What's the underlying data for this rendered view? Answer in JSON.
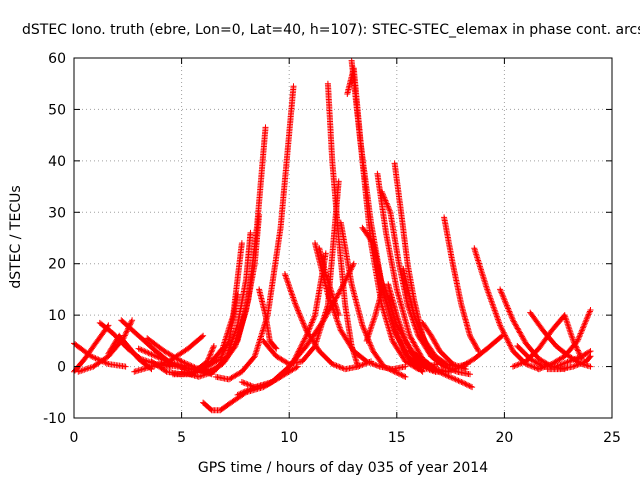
{
  "chart_data": {
    "type": "scatter",
    "title": "dSTEC Iono. truth (ebre, Lon=0, Lat=40, h=107): STEC-STEC_elemax in phase cont. arcs",
    "xlabel": "GPS time / hours of day 035 of year 2014",
    "ylabel": "dSTEC  / TECUs",
    "xlim": [
      0,
      25
    ],
    "ylim": [
      -10,
      60
    ],
    "xticks": [
      0,
      5,
      10,
      15,
      20,
      25
    ],
    "yticks": [
      -10,
      0,
      10,
      20,
      30,
      40,
      50,
      60
    ],
    "grid": true,
    "legend": "none",
    "marker": "plus",
    "marker_color": "#ff0000",
    "arcs": [
      {
        "x": [
          0.0,
          0.5,
          1.0,
          1.6
        ],
        "y": [
          -1.0,
          1.5,
          4.5,
          8.0
        ]
      },
      {
        "x": [
          0.0,
          0.8,
          1.6,
          2.4
        ],
        "y": [
          4.5,
          2.0,
          0.5,
          0.0
        ]
      },
      {
        "x": [
          0.2,
          0.9,
          1.6,
          2.3,
          2.7
        ],
        "y": [
          -1.0,
          0.0,
          2.0,
          5.5,
          9.0
        ]
      },
      {
        "x": [
          1.2,
          1.8,
          2.5,
          3.1,
          3.8,
          4.5
        ],
        "y": [
          8.5,
          6.5,
          3.5,
          1.5,
          0.5,
          0.0
        ]
      },
      {
        "x": [
          1.6,
          2.1,
          2.5,
          3.0,
          3.6
        ],
        "y": [
          2.5,
          6.0,
          4.0,
          1.5,
          -0.5
        ]
      },
      {
        "x": [
          2.2,
          3.0,
          3.8,
          4.4,
          5.0
        ],
        "y": [
          9.0,
          6.0,
          3.0,
          1.0,
          0.0
        ]
      },
      {
        "x": [
          2.8,
          3.6,
          4.4,
          5.3,
          6.0
        ],
        "y": [
          -1.0,
          0.0,
          1.0,
          3.5,
          6.0
        ]
      },
      {
        "x": [
          3.0,
          3.8,
          4.6,
          5.4,
          6.2,
          6.6
        ],
        "y": [
          3.5,
          2.0,
          0.5,
          -0.5,
          -1.0,
          -0.5
        ]
      },
      {
        "x": [
          3.4,
          4.2,
          5.0,
          5.8,
          6.4
        ],
        "y": [
          5.5,
          3.0,
          1.0,
          -0.5,
          -1.5
        ]
      },
      {
        "x": [
          3.6,
          4.3,
          5.0,
          5.6,
          6.2,
          6.5
        ],
        "y": [
          1.0,
          -1.0,
          -1.5,
          -1.0,
          1.0,
          4.0
        ]
      },
      {
        "x": [
          4.0,
          4.8,
          5.6,
          6.2,
          6.8,
          7.2,
          7.6
        ],
        "y": [
          0.5,
          0.0,
          -0.5,
          0.0,
          1.5,
          5.0,
          14.0
        ]
      },
      {
        "x": [
          4.6,
          5.5,
          6.3,
          6.9,
          7.4,
          7.8
        ],
        "y": [
          -1.5,
          -1.5,
          0.5,
          3.5,
          10.0,
          24.0
        ]
      },
      {
        "x": [
          5.0,
          5.8,
          6.5,
          7.1,
          7.6,
          8.0,
          8.2
        ],
        "y": [
          -1.0,
          -2.0,
          -1.0,
          2.0,
          8.0,
          17.0,
          26.0
        ]
      },
      {
        "x": [
          5.6,
          6.3,
          6.9,
          7.5,
          8.0,
          8.4,
          8.6
        ],
        "y": [
          -0.5,
          -1.0,
          0.5,
          4.0,
          11.0,
          20.0,
          29.5
        ]
      },
      {
        "x": [
          6.0,
          6.4,
          6.8,
          7.3,
          8.0,
          8.8,
          9.6,
          10.4
        ],
        "y": [
          -7.0,
          -8.5,
          -8.5,
          -7.0,
          -5.0,
          -4.0,
          -2.0,
          0.0
        ]
      },
      {
        "x": [
          6.4,
          7.0,
          7.6,
          8.1,
          8.5,
          8.9
        ],
        "y": [
          -1.0,
          1.0,
          5.0,
          13.0,
          27.0,
          46.5
        ]
      },
      {
        "x": [
          6.6,
          7.2,
          7.8,
          8.4,
          9.0,
          9.6,
          10.2
        ],
        "y": [
          -2.0,
          -2.5,
          -1.0,
          2.0,
          10.0,
          27.0,
          54.5
        ]
      },
      {
        "x": [
          7.6,
          8.4,
          9.2,
          10.0,
          10.8,
          11.6,
          12.4,
          13.0
        ],
        "y": [
          -5.5,
          -4.0,
          -3.0,
          0.0,
          4.0,
          9.0,
          15.0,
          20.0
        ]
      },
      {
        "x": [
          7.8,
          8.4,
          9.0,
          9.6,
          10.2,
          10.8,
          11.2,
          11.7
        ],
        "y": [
          -3.0,
          -4.0,
          -3.5,
          -2.0,
          1.0,
          6.0,
          10.0,
          22.0
        ]
      },
      {
        "x": [
          8.6,
          8.9,
          9.1,
          9.4
        ],
        "y": [
          15.0,
          10.0,
          5.0,
          3.5
        ]
      },
      {
        "x": [
          8.8,
          9.4,
          10.0,
          10.6,
          11.2,
          11.8,
          12.3
        ],
        "y": [
          5.0,
          2.0,
          0.5,
          1.0,
          4.0,
          12.0,
          36.0
        ]
      },
      {
        "x": [
          9.8,
          10.3,
          10.8,
          11.4,
          12.0,
          12.6,
          13.2,
          13.8
        ],
        "y": [
          18.0,
          12.0,
          7.0,
          3.0,
          0.5,
          -0.5,
          0.0,
          1.0
        ]
      },
      {
        "x": [
          11.2,
          11.8,
          12.4,
          13.0,
          13.6,
          14.2,
          14.8,
          15.4
        ],
        "y": [
          24.0,
          14.0,
          7.0,
          3.0,
          1.0,
          0.0,
          -0.5,
          0.0
        ]
      },
      {
        "x": [
          11.4,
          11.7,
          12.0,
          12.3
        ],
        "y": [
          23.0,
          18.0,
          14.0,
          10.0
        ]
      },
      {
        "x": [
          11.8,
          12.0,
          12.3,
          12.6,
          12.9,
          13.2
        ],
        "y": [
          55.0,
          40.0,
          25.0,
          12.0,
          4.0,
          0.0
        ]
      },
      {
        "x": [
          12.4,
          12.9,
          13.4,
          13.9,
          14.4,
          14.9,
          15.4
        ],
        "y": [
          28.0,
          16.0,
          8.0,
          3.0,
          0.0,
          -1.0,
          -2.0
        ]
      },
      {
        "x": [
          12.7,
          13.0,
          13.4,
          13.8,
          14.3,
          14.8,
          15.4,
          16.0
        ],
        "y": [
          53.0,
          58.0,
          40.0,
          24.0,
          12.0,
          5.0,
          1.0,
          -0.5
        ]
      },
      {
        "x": [
          12.9,
          13.3,
          13.8,
          14.3,
          14.9,
          15.5,
          16.1,
          16.8
        ],
        "y": [
          59.5,
          44.0,
          28.0,
          16.0,
          7.0,
          2.0,
          0.0,
          -1.0
        ]
      },
      {
        "x": [
          13.4,
          13.9,
          14.4,
          15.0,
          15.6,
          16.2
        ],
        "y": [
          27.0,
          24.0,
          14.0,
          6.0,
          1.0,
          -1.0
        ]
      },
      {
        "x": [
          13.6,
          14.0,
          14.4,
          15.0,
          15.7,
          16.5,
          17.2,
          18.0,
          18.5
        ],
        "y": [
          5.0,
          10.0,
          16.0,
          8.0,
          3.0,
          0.0,
          -1.5,
          -3.0,
          -4.0
        ]
      },
      {
        "x": [
          14.1,
          14.5,
          15.0,
          15.6,
          16.2,
          16.8,
          17.4
        ],
        "y": [
          37.5,
          26.0,
          15.0,
          6.0,
          1.5,
          -0.5,
          -1.0
        ]
      },
      {
        "x": [
          14.3,
          14.7,
          15.1,
          15.5,
          16.0,
          16.6,
          17.2,
          17.8,
          18.4
        ],
        "y": [
          34.0,
          30.0,
          20.0,
          12.0,
          6.0,
          2.0,
          0.0,
          -1.0,
          -1.5
        ]
      },
      {
        "x": [
          14.6,
          15.0,
          15.4,
          15.9,
          16.4,
          16.9
        ],
        "y": [
          16.0,
          10.0,
          5.0,
          1.0,
          0.0,
          0.5
        ]
      },
      {
        "x": [
          14.9,
          15.2,
          15.5,
          15.8,
          16.2,
          16.6
        ],
        "y": [
          39.5,
          30.0,
          20.0,
          13.0,
          6.0,
          2.0
        ]
      },
      {
        "x": [
          15.3,
          15.8,
          16.3,
          16.8,
          17.3,
          17.8,
          18.3
        ],
        "y": [
          19.0,
          10.0,
          5.0,
          2.0,
          0.5,
          0.0,
          0.5
        ]
      },
      {
        "x": [
          15.6,
          16.2,
          16.8,
          17.4,
          18.0,
          18.6,
          19.2,
          19.9
        ],
        "y": [
          3.0,
          0.5,
          -1.0,
          -1.0,
          0.0,
          1.5,
          3.5,
          6.0
        ]
      },
      {
        "x": [
          16.2,
          16.6,
          17.0,
          17.6,
          18.2
        ],
        "y": [
          8.5,
          6.0,
          3.0,
          0.5,
          -0.5
        ]
      },
      {
        "x": [
          17.2,
          17.6,
          18.0,
          18.4,
          18.8
        ],
        "y": [
          29.0,
          20.0,
          12.0,
          6.0,
          3.0
        ]
      },
      {
        "x": [
          18.6,
          19.2,
          19.8,
          20.4,
          21.0,
          21.6
        ],
        "y": [
          23.0,
          15.0,
          8.0,
          3.0,
          0.5,
          -0.5
        ]
      },
      {
        "x": [
          19.8,
          20.4,
          21.0,
          21.6,
          22.2,
          22.8
        ],
        "y": [
          15.0,
          9.0,
          4.5,
          1.5,
          0.0,
          -0.5
        ]
      },
      {
        "x": [
          20.4,
          21.0,
          21.6,
          22.2,
          22.8,
          23.2,
          23.6
        ],
        "y": [
          0.0,
          1.0,
          3.5,
          7.0,
          10.0,
          5.0,
          1.5
        ]
      },
      {
        "x": [
          20.6,
          21.2,
          21.8,
          22.4,
          23.0,
          23.6,
          24.0
        ],
        "y": [
          4.0,
          1.5,
          0.0,
          0.0,
          1.0,
          2.0,
          3.0
        ]
      },
      {
        "x": [
          21.2,
          21.8,
          22.4,
          23.0,
          23.6,
          24.0
        ],
        "y": [
          10.5,
          7.0,
          4.0,
          2.0,
          0.5,
          0.0
        ]
      },
      {
        "x": [
          21.6,
          22.2,
          22.8,
          23.4,
          23.8,
          24.0
        ],
        "y": [
          -0.5,
          0.5,
          2.0,
          5.0,
          9.0,
          11.0
        ]
      },
      {
        "x": [
          22.0,
          22.6,
          23.2,
          23.8,
          24.0
        ],
        "y": [
          -0.5,
          -0.5,
          0.0,
          1.0,
          2.0
        ]
      }
    ]
  }
}
